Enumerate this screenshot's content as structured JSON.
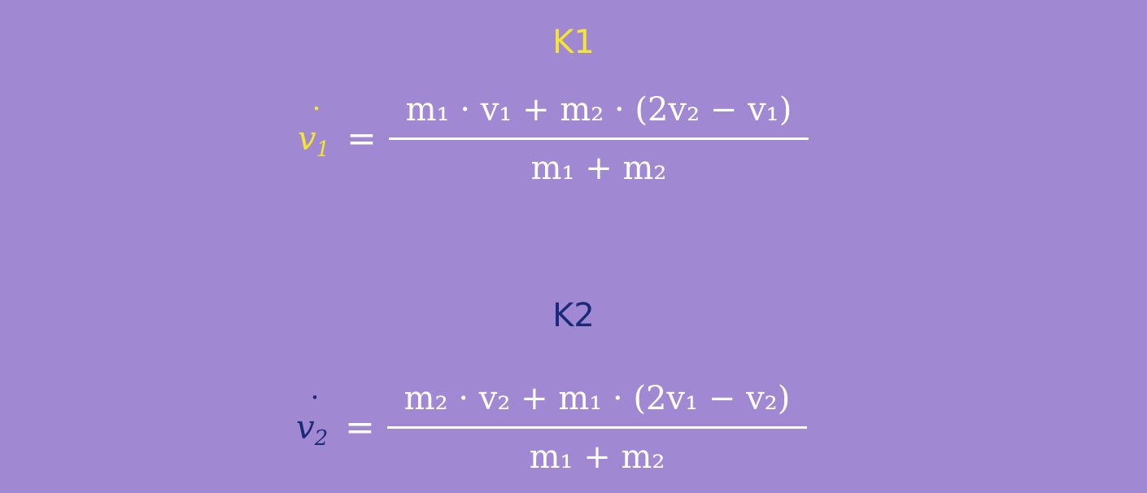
{
  "k1": {
    "heading": "K1",
    "lhs_var": "v",
    "lhs_sub": "1",
    "numerator": "m₁ · v₁ + m₂ · (2v₂ − v₁)",
    "denominator": "m₁ + m₂",
    "color": "#f5e52e"
  },
  "k2": {
    "heading": "K2",
    "lhs_var": "v",
    "lhs_sub": "2",
    "numerator": "m₂ · v₂ + m₁ · (2v₁ − v₂)",
    "denominator": "m₁ + m₂",
    "color": "#1b2a78"
  },
  "equals_sign": "=",
  "dot_mark": "˙",
  "background_color": "#a089d2"
}
